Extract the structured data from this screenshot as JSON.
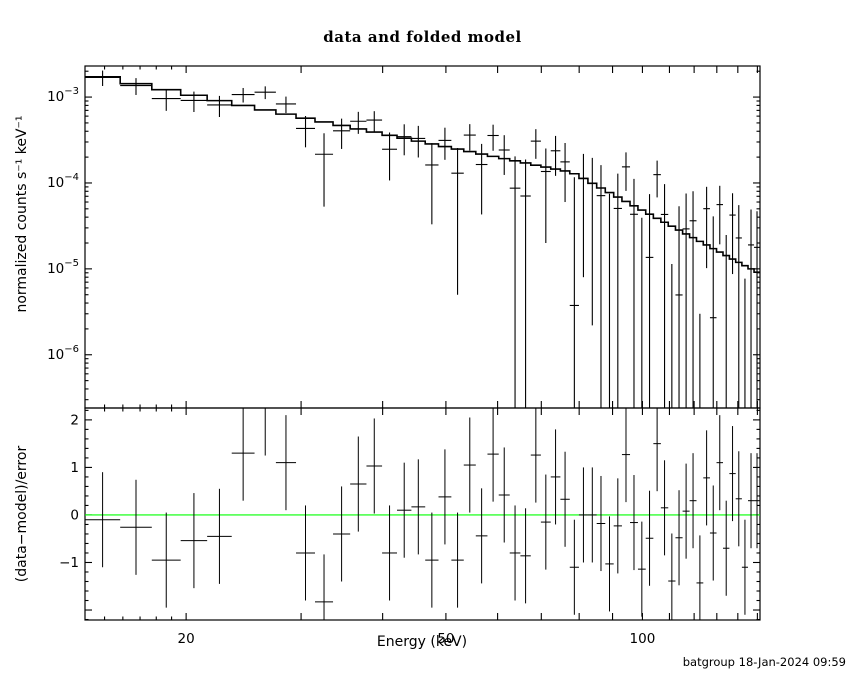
{
  "title": "data and folded model",
  "xlabel": "Energy (keV)",
  "stamp": "batgroup 18-Jan-2024 09:59",
  "colors": {
    "foreground": "#000000",
    "background": "#ffffff",
    "model": "#000000",
    "data": "#000000",
    "zero_line": "#00ff00"
  },
  "chart_data": [
    {
      "panel": "spectrum",
      "type": "line",
      "title": "data and folded model",
      "ylabel": "normalized counts s⁻¹ keV⁻¹",
      "scale": {
        "x": "log",
        "y": "log"
      },
      "grid": false,
      "legend": "none",
      "xlim": [
        14.0,
        151.39
      ],
      "ylim": [
        2.4e-07,
        0.0023
      ],
      "x_ticks_labeled": [
        20,
        50,
        100
      ],
      "x_ticks_major": [
        20,
        30,
        40,
        50,
        60,
        70,
        80,
        90,
        100,
        110,
        120,
        130,
        140,
        150
      ],
      "x_ticks_minor": [
        15,
        16,
        17,
        18,
        19
      ],
      "y_tick_exponents": [
        -3,
        -4,
        -5,
        -6
      ],
      "series": {
        "e_lo": [
          14.0,
          15.85,
          17.72,
          19.62,
          21.54,
          23.49,
          25.46,
          27.45,
          29.47,
          31.51,
          33.58,
          35.67,
          37.78,
          39.92,
          42.08,
          44.27,
          46.48,
          48.71,
          50.97,
          53.25,
          55.56,
          57.89,
          60.24,
          62.62,
          65.02,
          67.45,
          69.9,
          72.37,
          74.87,
          77.39,
          79.94,
          82.51,
          85.1,
          87.72,
          90.36,
          93.03,
          95.72,
          98.43,
          101.17,
          103.93,
          106.72,
          109.53,
          112.36,
          115.22,
          118.1,
          121.01,
          123.94,
          126.89,
          129.87,
          132.87,
          135.9,
          138.95,
          142.02,
          145.12,
          148.24
        ],
        "e_hi": [
          15.85,
          17.72,
          19.62,
          21.54,
          23.49,
          25.46,
          27.45,
          29.47,
          31.51,
          33.58,
          35.67,
          37.78,
          39.92,
          42.08,
          44.27,
          46.48,
          48.71,
          50.97,
          53.25,
          55.56,
          57.89,
          60.24,
          62.62,
          65.02,
          67.45,
          69.9,
          72.37,
          74.87,
          77.39,
          79.94,
          82.51,
          85.1,
          87.72,
          90.36,
          93.03,
          95.72,
          98.43,
          101.17,
          103.93,
          106.72,
          109.53,
          112.36,
          115.22,
          118.1,
          121.01,
          123.94,
          126.89,
          129.87,
          132.87,
          135.9,
          138.95,
          142.02,
          145.12,
          148.24,
          151.39
        ],
        "model": [
          0.00172,
          0.00143,
          0.00122,
          0.00105,
          0.000909,
          0.000799,
          0.000708,
          0.000633,
          0.000568,
          0.000514,
          0.000467,
          0.000426,
          0.000391,
          0.000359,
          0.000332,
          0.000307,
          0.000285,
          0.000265,
          0.000248,
          0.000232,
          0.000217,
          0.000204,
          0.000192,
          0.000181,
          0.000171,
          0.000161,
          0.000153,
          0.000145,
          0.000138,
          0.000128,
          0.000113,
          9.91e-05,
          8.74e-05,
          7.73e-05,
          6.85e-05,
          6.09e-05,
          5.42e-05,
          4.84e-05,
          4.33e-05,
          3.88e-05,
          3.49e-05,
          3.14e-05,
          2.83e-05,
          2.55e-05,
          2.31e-05,
          2.09e-05,
          1.9e-05,
          1.72e-05,
          1.57e-05,
          1.43e-05,
          1.3e-05,
          1.19e-05,
          1.09e-05,
          1e-05,
          9.14e-06
        ],
        "data": [
          0.00169,
          0.00136,
          0.00096,
          0.000914,
          0.000809,
          0.00107,
          0.00114,
          0.000832,
          0.000431,
          0.000216,
          0.000405,
          0.000523,
          0.00054,
          0.000247,
          0.000346,
          0.00033,
          0.000162,
          0.000313,
          0.00013,
          0.000361,
          0.000164,
          0.000357,
          0.000242,
          8.7e-05,
          7.05e-05,
          0.000307,
          0.000136,
          0.000237,
          0.000176,
          3.75e-06,
          0.000113,
          9.91e-05,
          7.12e-05,
          -8.9e-06,
          5.05e-05,
          0.000154,
          4.32e-05,
          -2.49e-05,
          1.36e-05,
          0.000125,
          4.3e-05,
          -3.98e-05,
          4.97e-06,
          2.92e-05,
          3.63e-05,
          -3.89e-05,
          5.02e-05,
          2.7e-06,
          5.6e-05,
          -1.03e-05,
          4.23e-05,
          2.29e-05,
          -2.35e-05,
          1.9e-05,
          1.78e-05
        ],
        "err": [
          0.000344,
          0.000302,
          0.000269,
          0.000244,
          0.000223,
          0.000206,
          0.000193,
          0.000181,
          0.000171,
          0.000163,
          0.000156,
          0.00015,
          0.000145,
          0.00014,
          0.000136,
          0.000132,
          0.000129,
          0.000127,
          0.000125,
          0.000123,
          0.000121,
          0.00012,
          0.000118,
          0.000117,
          0.000117,
          0.000116,
          0.000116,
          0.000116,
          0.000116,
          0.000113,
          0.000105,
          9.69e-05,
          8.99e-05,
          8.37e-05,
          7.81e-05,
          7.31e-05,
          6.85e-05,
          6.43e-05,
          6.06e-05,
          5.71e-05,
          5.41e-05,
          5.12e-05,
          4.86e-05,
          4.61e-05,
          4.39e-05,
          4.19e-05,
          4e-05,
          3.82e-05,
          3.67e-05,
          3.51e-05,
          3.36e-05,
          3.24e-05,
          3.12e-05,
          3.01e-05,
          2.9e-05
        ]
      }
    },
    {
      "panel": "residuals",
      "type": "scatter",
      "ylabel": "(data−model)/error",
      "scale": {
        "x": "log",
        "y": "linear"
      },
      "grid": false,
      "ylim": [
        -2.21,
        2.25
      ],
      "y_ticks_labeled": [
        -1,
        0,
        1,
        2
      ],
      "y_ticks_major": [
        -2,
        -1,
        0,
        1,
        2
      ],
      "y_tick_minor_step": 0.2,
      "zero_line_value": 0,
      "error_bar_halflength": 1,
      "resid": [
        -0.1,
        -0.26,
        -0.95,
        -0.54,
        -0.45,
        1.3,
        2.25,
        1.1,
        -0.8,
        -1.83,
        -0.4,
        0.65,
        1.03,
        -0.8,
        0.1,
        0.17,
        -0.95,
        0.38,
        -0.95,
        1.05,
        -0.44,
        1.28,
        0.42,
        -0.8,
        -0.86,
        1.26,
        -0.15,
        0.8,
        0.33,
        -1.1,
        0.0,
        0.0,
        -0.18,
        -1.03,
        -0.23,
        1.27,
        -0.16,
        -1.14,
        -0.49,
        1.5,
        0.15,
        -1.39,
        -0.48,
        0.08,
        0.3,
        -1.43,
        0.78,
        -0.38,
        1.1,
        -0.7,
        0.87,
        0.34,
        -1.1,
        0.3,
        0.3
      ]
    }
  ]
}
